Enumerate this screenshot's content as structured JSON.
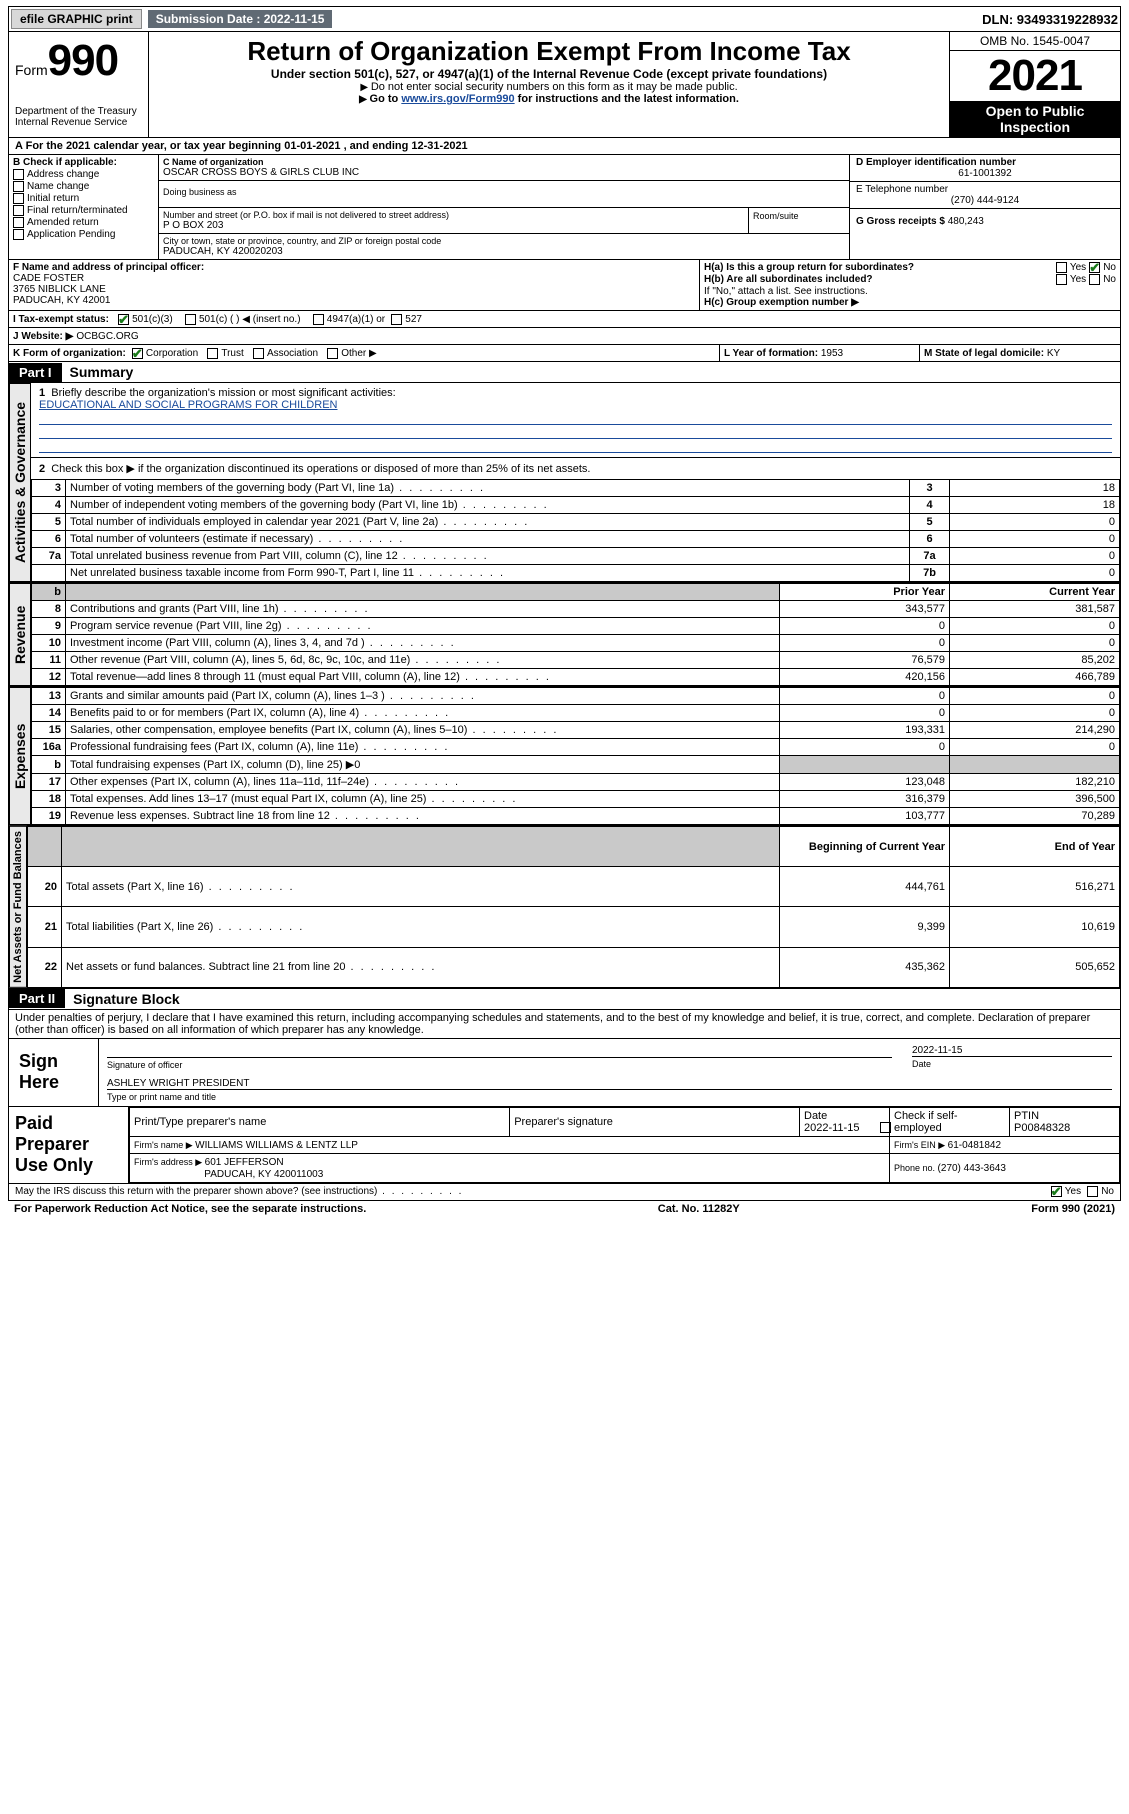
{
  "topbar": {
    "efile": "efile GRAPHIC print",
    "sub_label": "Submission Date : 2022-11-15",
    "dln": "DLN: 93493319228932"
  },
  "header": {
    "form": "Form",
    "form_no": "990",
    "dept": "Department of the Treasury",
    "irs": "Internal Revenue Service",
    "title": "Return of Organization Exempt From Income Tax",
    "sub1": "Under section 501(c), 527, or 4947(a)(1) of the Internal Revenue Code (except private foundations)",
    "sub2": "Do not enter social security numbers on this form as it may be made public.",
    "sub3_pre": "Go to ",
    "sub3_link": "www.irs.gov/Form990",
    "sub3_post": " for instructions and the latest information.",
    "omb": "OMB No. 1545-0047",
    "year": "2021",
    "open": "Open to Public Inspection"
  },
  "section_a": {
    "label_a": "A",
    "text": "For the 2021 calendar year, or tax year beginning ",
    "begin": "01-01-2021",
    "mid": " , and ending ",
    "end": "12-31-2021"
  },
  "section_b": {
    "label": "B Check if applicable:",
    "items": [
      "Address change",
      "Name change",
      "Initial return",
      "Final return/terminated",
      "Amended return",
      "Application Pending"
    ]
  },
  "section_c": {
    "label": "C Name of organization",
    "name": "OSCAR CROSS BOYS & GIRLS CLUB INC",
    "dba": "Doing business as",
    "addr_label": "Number and street (or P.O. box if mail is not delivered to street address)",
    "room": "Room/suite",
    "addr": "P O BOX 203",
    "city_label": "City or town, state or province, country, and ZIP or foreign postal code",
    "city": "PADUCAH, KY  420020203"
  },
  "section_d": {
    "label": "D Employer identification number",
    "ein": "61-1001392"
  },
  "section_e": {
    "label": "E Telephone number",
    "phone": "(270) 444-9124"
  },
  "section_g": {
    "label": "G Gross receipts $ ",
    "val": "480,243"
  },
  "section_f": {
    "label": "F  Name and address of principal officer:",
    "name": "CADE FOSTER",
    "addr1": "3765 NIBLICK LANE",
    "addr2": "PADUCAH, KY  42001"
  },
  "section_h": {
    "ha": "H(a)  Is this a group return for subordinates?",
    "hb": "H(b)  Are all subordinates included?",
    "hb_note": "If \"No,\" attach a list. See instructions.",
    "hc": "H(c)  Group exemption number ▶",
    "yes": "Yes",
    "no": "No"
  },
  "section_i": {
    "label": "I    Tax-exempt status:",
    "opt1": "501(c)(3)",
    "opt2": "501(c) (  ) ◀ (insert no.)",
    "opt3": "4947(a)(1) or",
    "opt4": "527"
  },
  "section_j": {
    "label": "J    Website: ▶",
    "val": " OCBGC.ORG"
  },
  "section_k": {
    "label": "K Form of organization:",
    "opts": [
      "Corporation",
      "Trust",
      "Association",
      "Other ▶"
    ]
  },
  "section_l": {
    "label": "L Year of formation: ",
    "val": "1953"
  },
  "section_m": {
    "label": "M State of legal domicile: ",
    "val": "KY"
  },
  "part1": {
    "hdr": "Part I",
    "title": "Summary",
    "line1": "Briefly describe the organization's mission or most significant activities:",
    "mission": "EDUCATIONAL AND SOCIAL PROGRAMS FOR CHILDREN",
    "line2": "Check this box ▶           if the organization discontinued its operations or disposed of more than 25% of its net assets.",
    "gov_label": "Activities & Governance",
    "rev_label": "Revenue",
    "exp_label": "Expenses",
    "net_label": "Net Assets or Fund Balances",
    "lines_gov": [
      {
        "n": "3",
        "desc": "Number of voting members of the governing body (Part VI, line 1a)",
        "box": "3",
        "val": "18"
      },
      {
        "n": "4",
        "desc": "Number of independent voting members of the governing body (Part VI, line 1b)",
        "box": "4",
        "val": "18"
      },
      {
        "n": "5",
        "desc": "Total number of individuals employed in calendar year 2021 (Part V, line 2a)",
        "box": "5",
        "val": "0"
      },
      {
        "n": "6",
        "desc": "Total number of volunteers (estimate if necessary)",
        "box": "6",
        "val": "0"
      },
      {
        "n": "7a",
        "desc": "Total unrelated business revenue from Part VIII, column (C), line 12",
        "box": "7a",
        "val": "0"
      },
      {
        "n": "",
        "desc": "Net unrelated business taxable income from Form 990-T, Part I, line 11",
        "box": "7b",
        "val": "0"
      }
    ],
    "col_prior": "Prior Year",
    "col_current": "Current Year",
    "col_begin": "Beginning of Current Year",
    "col_end": "End of Year",
    "lines_rev": [
      {
        "n": "8",
        "desc": "Contributions and grants (Part VIII, line 1h)",
        "p": "343,577",
        "c": "381,587"
      },
      {
        "n": "9",
        "desc": "Program service revenue (Part VIII, line 2g)",
        "p": "0",
        "c": "0"
      },
      {
        "n": "10",
        "desc": "Investment income (Part VIII, column (A), lines 3, 4, and 7d )",
        "p": "0",
        "c": "0"
      },
      {
        "n": "11",
        "desc": "Other revenue (Part VIII, column (A), lines 5, 6d, 8c, 9c, 10c, and 11e)",
        "p": "76,579",
        "c": "85,202"
      },
      {
        "n": "12",
        "desc": "Total revenue—add lines 8 through 11 (must equal Part VIII, column (A), line 12)",
        "p": "420,156",
        "c": "466,789"
      }
    ],
    "lines_exp": [
      {
        "n": "13",
        "desc": "Grants and similar amounts paid (Part IX, column (A), lines 1–3 )",
        "p": "0",
        "c": "0"
      },
      {
        "n": "14",
        "desc": "Benefits paid to or for members (Part IX, column (A), line 4)",
        "p": "0",
        "c": "0"
      },
      {
        "n": "15",
        "desc": "Salaries, other compensation, employee benefits (Part IX, column (A), lines 5–10)",
        "p": "193,331",
        "c": "214,290"
      },
      {
        "n": "16a",
        "desc": "Professional fundraising fees (Part IX, column (A), line 11e)",
        "p": "0",
        "c": "0"
      },
      {
        "n": "b",
        "desc": "Total fundraising expenses (Part IX, column (D), line 25) ▶0",
        "p": "",
        "c": "",
        "shade": true
      },
      {
        "n": "17",
        "desc": "Other expenses (Part IX, column (A), lines 11a–11d, 11f–24e)",
        "p": "123,048",
        "c": "182,210"
      },
      {
        "n": "18",
        "desc": "Total expenses. Add lines 13–17 (must equal Part IX, column (A), line 25)",
        "p": "316,379",
        "c": "396,500"
      },
      {
        "n": "19",
        "desc": "Revenue less expenses. Subtract line 18 from line 12",
        "p": "103,777",
        "c": "70,289"
      }
    ],
    "lines_net": [
      {
        "n": "20",
        "desc": "Total assets (Part X, line 16)",
        "p": "444,761",
        "c": "516,271"
      },
      {
        "n": "21",
        "desc": "Total liabilities (Part X, line 26)",
        "p": "9,399",
        "c": "10,619"
      },
      {
        "n": "22",
        "desc": "Net assets or fund balances. Subtract line 21 from line 20",
        "p": "435,362",
        "c": "505,652"
      }
    ]
  },
  "part2": {
    "hdr": "Part II",
    "title": "Signature Block",
    "decl": "Under penalties of perjury, I declare that I have examined this return, including accompanying schedules and statements, and to the best of my knowledge and belief, it is true, correct, and complete. Declaration of preparer (other than officer) is based on all information of which preparer has any knowledge.",
    "sign_here": "Sign Here",
    "sig_officer": "Signature of officer",
    "sig_date": "Date",
    "sig_date_val": "2022-11-15",
    "officer": "ASHLEY WRIGHT PRESIDENT",
    "officer_lbl": "Type or print name and title",
    "paid": "Paid Preparer Use Only",
    "prep_hdr": [
      "Print/Type preparer's name",
      "Preparer's signature",
      "Date",
      "",
      "PTIN"
    ],
    "prep_date": "2022-11-15",
    "prep_check": "Check          if self-employed",
    "ptin": "P00848328",
    "firm_name_lbl": "Firm's name    ▶ ",
    "firm_name": "WILLIAMS WILLIAMS & LENTZ LLP",
    "firm_ein_lbl": "Firm's EIN ▶ ",
    "firm_ein": "61-0481842",
    "firm_addr_lbl": "Firm's address ▶ ",
    "firm_addr": "601 JEFFERSON",
    "firm_city": "PADUCAH, KY  420011003",
    "firm_phone_lbl": "Phone no. ",
    "firm_phone": "(270) 443-3643",
    "may": "May the IRS discuss this return with the preparer shown above? (see instructions)",
    "yes": "Yes",
    "no": "No"
  },
  "footer": {
    "left": "For Paperwork Reduction Act Notice, see the separate instructions.",
    "mid": "Cat. No. 11282Y",
    "right": "Form 990 (2021)"
  }
}
